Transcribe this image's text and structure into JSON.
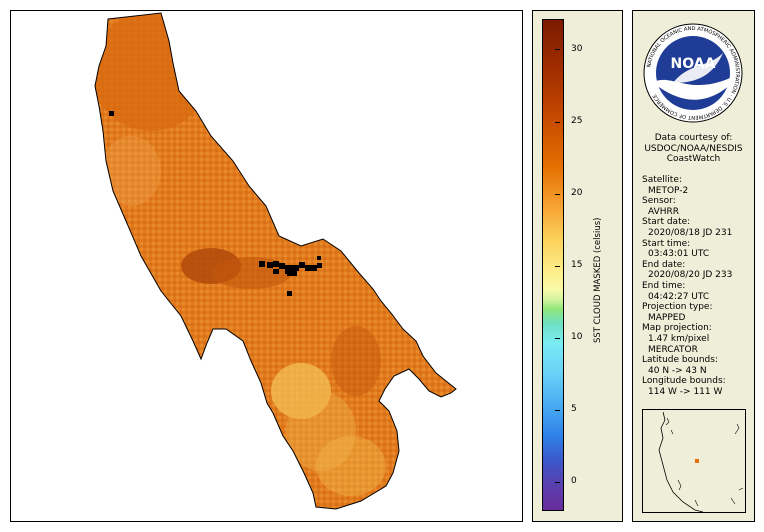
{
  "colorbar": {
    "title": "SST CLOUD MASKED (celsius)",
    "ticks": [
      "30",
      "25",
      "20",
      "15",
      "10",
      "5",
      "0"
    ]
  },
  "logo": {
    "text": "NOAA",
    "ring_text": "NATIONAL OCEANIC AND ATMOSPHERIC ADMINISTRATION · U.S. DEPARTMENT OF COMMERCE"
  },
  "courtesy": {
    "line1": "Data courtesy of:",
    "line2": "USDOC/NOAA/NESDIS",
    "line3": "CoastWatch"
  },
  "meta": {
    "satellite_label": "Satellite:",
    "satellite": "METOP-2",
    "sensor_label": "Sensor:",
    "sensor": "AVHRR",
    "start_date_label": "Start date:",
    "start_date": "2020/08/18 JD 231",
    "start_time_label": "Start time:",
    "start_time": "03:43:01 UTC",
    "end_date_label": "End date:",
    "end_date": "2020/08/20 JD 233",
    "end_time_label": "End time:",
    "end_time": "04:42:27 UTC",
    "projection_type_label": "Projection type:",
    "projection_type": "MAPPED",
    "map_projection_label": "Map projection:",
    "map_projection_1": "1.47 km/pixel",
    "map_projection_2": "MERCATOR",
    "lat_label": "Latitude bounds:",
    "lat": "40 N -> 43 N",
    "lon_label": "Longitude bounds:",
    "lon": "114 W -> 111 W"
  },
  "colors": {
    "panel_bg": "#efefd9",
    "sst_warm": "#e57000",
    "cloud": "#000000"
  }
}
